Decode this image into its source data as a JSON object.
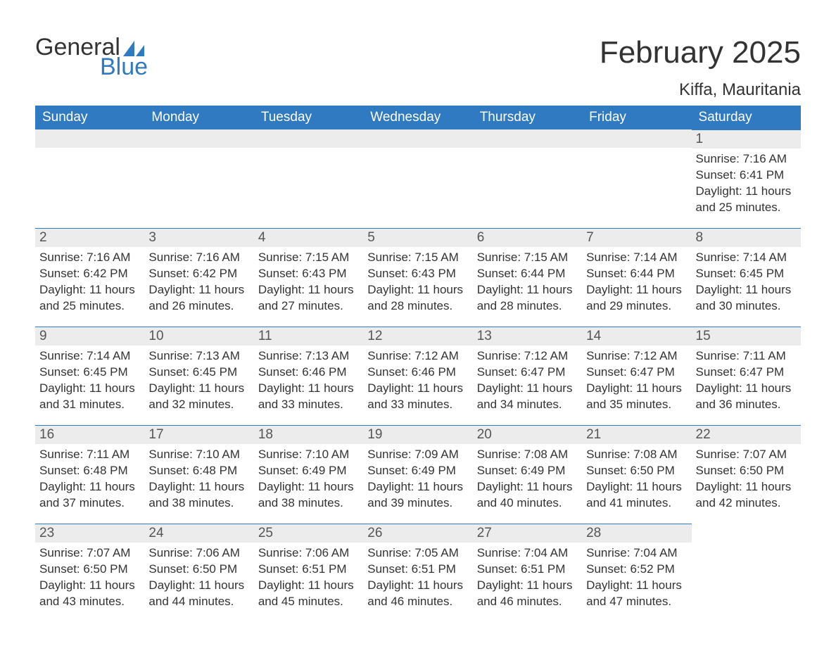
{
  "logo": {
    "text_general": "General",
    "text_blue": "Blue",
    "shape_color": "#2f7ac0"
  },
  "title": "February 2025",
  "location": "Kiffa, Mauritania",
  "colors": {
    "header_bg": "#2f7ac0",
    "header_text": "#ffffff",
    "daynum_bg": "#ececec",
    "daynum_border": "#2f7ac0",
    "body_text": "#333333",
    "page_bg": "#ffffff"
  },
  "day_headers": [
    "Sunday",
    "Monday",
    "Tuesday",
    "Wednesday",
    "Thursday",
    "Friday",
    "Saturday"
  ],
  "weeks": [
    [
      {
        "blank": true
      },
      {
        "blank": true
      },
      {
        "blank": true
      },
      {
        "blank": true
      },
      {
        "blank": true
      },
      {
        "blank": true
      },
      {
        "n": "1",
        "sunrise": "Sunrise: 7:16 AM",
        "sunset": "Sunset: 6:41 PM",
        "daylight": "Daylight: 11 hours and 25 minutes."
      }
    ],
    [
      {
        "n": "2",
        "sunrise": "Sunrise: 7:16 AM",
        "sunset": "Sunset: 6:42 PM",
        "daylight": "Daylight: 11 hours and 25 minutes."
      },
      {
        "n": "3",
        "sunrise": "Sunrise: 7:16 AM",
        "sunset": "Sunset: 6:42 PM",
        "daylight": "Daylight: 11 hours and 26 minutes."
      },
      {
        "n": "4",
        "sunrise": "Sunrise: 7:15 AM",
        "sunset": "Sunset: 6:43 PM",
        "daylight": "Daylight: 11 hours and 27 minutes."
      },
      {
        "n": "5",
        "sunrise": "Sunrise: 7:15 AM",
        "sunset": "Sunset: 6:43 PM",
        "daylight": "Daylight: 11 hours and 28 minutes."
      },
      {
        "n": "6",
        "sunrise": "Sunrise: 7:15 AM",
        "sunset": "Sunset: 6:44 PM",
        "daylight": "Daylight: 11 hours and 28 minutes."
      },
      {
        "n": "7",
        "sunrise": "Sunrise: 7:14 AM",
        "sunset": "Sunset: 6:44 PM",
        "daylight": "Daylight: 11 hours and 29 minutes."
      },
      {
        "n": "8",
        "sunrise": "Sunrise: 7:14 AM",
        "sunset": "Sunset: 6:45 PM",
        "daylight": "Daylight: 11 hours and 30 minutes."
      }
    ],
    [
      {
        "n": "9",
        "sunrise": "Sunrise: 7:14 AM",
        "sunset": "Sunset: 6:45 PM",
        "daylight": "Daylight: 11 hours and 31 minutes."
      },
      {
        "n": "10",
        "sunrise": "Sunrise: 7:13 AM",
        "sunset": "Sunset: 6:45 PM",
        "daylight": "Daylight: 11 hours and 32 minutes."
      },
      {
        "n": "11",
        "sunrise": "Sunrise: 7:13 AM",
        "sunset": "Sunset: 6:46 PM",
        "daylight": "Daylight: 11 hours and 33 minutes."
      },
      {
        "n": "12",
        "sunrise": "Sunrise: 7:12 AM",
        "sunset": "Sunset: 6:46 PM",
        "daylight": "Daylight: 11 hours and 33 minutes."
      },
      {
        "n": "13",
        "sunrise": "Sunrise: 7:12 AM",
        "sunset": "Sunset: 6:47 PM",
        "daylight": "Daylight: 11 hours and 34 minutes."
      },
      {
        "n": "14",
        "sunrise": "Sunrise: 7:12 AM",
        "sunset": "Sunset: 6:47 PM",
        "daylight": "Daylight: 11 hours and 35 minutes."
      },
      {
        "n": "15",
        "sunrise": "Sunrise: 7:11 AM",
        "sunset": "Sunset: 6:47 PM",
        "daylight": "Daylight: 11 hours and 36 minutes."
      }
    ],
    [
      {
        "n": "16",
        "sunrise": "Sunrise: 7:11 AM",
        "sunset": "Sunset: 6:48 PM",
        "daylight": "Daylight: 11 hours and 37 minutes."
      },
      {
        "n": "17",
        "sunrise": "Sunrise: 7:10 AM",
        "sunset": "Sunset: 6:48 PM",
        "daylight": "Daylight: 11 hours and 38 minutes."
      },
      {
        "n": "18",
        "sunrise": "Sunrise: 7:10 AM",
        "sunset": "Sunset: 6:49 PM",
        "daylight": "Daylight: 11 hours and 38 minutes."
      },
      {
        "n": "19",
        "sunrise": "Sunrise: 7:09 AM",
        "sunset": "Sunset: 6:49 PM",
        "daylight": "Daylight: 11 hours and 39 minutes."
      },
      {
        "n": "20",
        "sunrise": "Sunrise: 7:08 AM",
        "sunset": "Sunset: 6:49 PM",
        "daylight": "Daylight: 11 hours and 40 minutes."
      },
      {
        "n": "21",
        "sunrise": "Sunrise: 7:08 AM",
        "sunset": "Sunset: 6:50 PM",
        "daylight": "Daylight: 11 hours and 41 minutes."
      },
      {
        "n": "22",
        "sunrise": "Sunrise: 7:07 AM",
        "sunset": "Sunset: 6:50 PM",
        "daylight": "Daylight: 11 hours and 42 minutes."
      }
    ],
    [
      {
        "n": "23",
        "sunrise": "Sunrise: 7:07 AM",
        "sunset": "Sunset: 6:50 PM",
        "daylight": "Daylight: 11 hours and 43 minutes."
      },
      {
        "n": "24",
        "sunrise": "Sunrise: 7:06 AM",
        "sunset": "Sunset: 6:50 PM",
        "daylight": "Daylight: 11 hours and 44 minutes."
      },
      {
        "n": "25",
        "sunrise": "Sunrise: 7:06 AM",
        "sunset": "Sunset: 6:51 PM",
        "daylight": "Daylight: 11 hours and 45 minutes."
      },
      {
        "n": "26",
        "sunrise": "Sunrise: 7:05 AM",
        "sunset": "Sunset: 6:51 PM",
        "daylight": "Daylight: 11 hours and 46 minutes."
      },
      {
        "n": "27",
        "sunrise": "Sunrise: 7:04 AM",
        "sunset": "Sunset: 6:51 PM",
        "daylight": "Daylight: 11 hours and 46 minutes."
      },
      {
        "n": "28",
        "sunrise": "Sunrise: 7:04 AM",
        "sunset": "Sunset: 6:52 PM",
        "daylight": "Daylight: 11 hours and 47 minutes."
      },
      {
        "blank": true,
        "nobar": true
      }
    ]
  ]
}
